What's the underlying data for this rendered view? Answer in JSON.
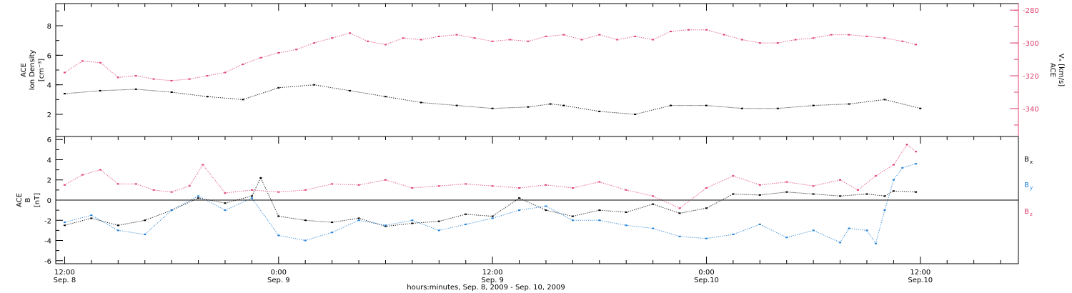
{
  "chart_data": [
    {
      "type": "scatter",
      "ylabel_lines": [
        "ACE",
        "Ion Density",
        "[cm⁻³]"
      ],
      "y_ticks": [
        2,
        4,
        6,
        8
      ],
      "ylim": [
        0.5,
        9.5
      ],
      "ylabel2_lines": [
        "ACE",
        "Vₓ [km/s]"
      ],
      "y2_ticks": [
        -280,
        -300,
        -320,
        -340
      ],
      "y2lim": [
        -357,
        -276
      ],
      "series": [
        {
          "role": "ion-density",
          "color": "#000000",
          "t": [
            0,
            4,
            8,
            12,
            16,
            20,
            24,
            28,
            32,
            36,
            40,
            44,
            48,
            52,
            54.5,
            56,
            60,
            64,
            68,
            72,
            76,
            80,
            84,
            88,
            92,
            96
          ],
          "v": [
            3.4,
            3.6,
            3.7,
            3.5,
            3.2,
            3.0,
            3.8,
            4.0,
            3.6,
            3.2,
            2.8,
            2.6,
            2.4,
            2.5,
            2.7,
            2.6,
            2.2,
            2.0,
            2.6,
            2.6,
            2.4,
            2.4,
            2.6,
            2.7,
            3.0,
            2.4
          ]
        },
        {
          "role": "vx",
          "color": "#e0406e",
          "t": [
            0,
            2,
            4,
            6,
            8,
            10,
            12,
            14,
            16,
            18,
            20,
            22,
            24,
            26,
            28,
            30,
            32,
            34,
            36,
            38,
            40,
            42,
            44,
            46,
            48,
            50,
            52,
            54,
            56,
            58,
            60,
            62,
            64,
            66,
            68,
            70,
            72,
            74,
            76,
            78,
            80,
            82,
            84,
            86,
            88,
            90,
            92,
            94,
            95.5
          ],
          "v": [
            -318,
            -311,
            -312,
            -321,
            -320,
            -322,
            -323,
            -322,
            -320,
            -318,
            -313,
            -309,
            -306,
            -304,
            -300,
            -297,
            -294,
            -299,
            -301,
            -297,
            -298,
            -296,
            -295,
            -297,
            -299,
            -298,
            -299,
            -296,
            -295,
            -298,
            -295,
            -298,
            -296,
            -298,
            -293,
            -292,
            -292,
            -295,
            -298,
            -300,
            -300,
            -298,
            -297,
            -295,
            -295,
            -296,
            -297,
            -299,
            -301
          ]
        }
      ]
    },
    {
      "type": "scatter",
      "ylabel_lines": [
        "ACE",
        "B",
        "[nT]"
      ],
      "y_ticks": [
        -6,
        -4,
        -2,
        0,
        2,
        4,
        6
      ],
      "ylim": [
        -6.3,
        6.3
      ],
      "zero_line": true,
      "series": [
        {
          "name": "B",
          "subscript": "x",
          "color": "#000000",
          "t": [
            0,
            3,
            6,
            9,
            12,
            15,
            18,
            21,
            22,
            24,
            27,
            30,
            33,
            36,
            39,
            42,
            45,
            48,
            51,
            54,
            57,
            60,
            63,
            66,
            69,
            72,
            75,
            78,
            81,
            84,
            87,
            90,
            92,
            93,
            95.5
          ],
          "v": [
            -2.5,
            -1.8,
            -2.5,
            -2.0,
            -1.0,
            0.2,
            -0.3,
            0.4,
            2.2,
            -1.6,
            -2.0,
            -2.2,
            -1.8,
            -2.6,
            -2.3,
            -2.1,
            -1.4,
            -1.6,
            0.2,
            -1.0,
            -1.6,
            -1.0,
            -1.2,
            -0.4,
            -1.3,
            -0.8,
            0.6,
            0.5,
            0.8,
            0.6,
            0.4,
            0.6,
            0.4,
            0.9,
            0.8
          ]
        },
        {
          "name": "B",
          "subscript": "y",
          "color": "#1f7fd6",
          "t": [
            0,
            3,
            6,
            9,
            12,
            15,
            18,
            21,
            24,
            27,
            30,
            33,
            36,
            39,
            42,
            45,
            48,
            51,
            54,
            57,
            60,
            63,
            66,
            69,
            72,
            75,
            78,
            81,
            84,
            87,
            88,
            90,
            91,
            92,
            93,
            94,
            95.5
          ],
          "v": [
            -2.2,
            -1.5,
            -3.0,
            -3.4,
            -1.0,
            0.4,
            -1.0,
            0.2,
            -3.5,
            -4.0,
            -3.2,
            -2.0,
            -2.5,
            -2.0,
            -3.0,
            -2.4,
            -1.8,
            -1.0,
            -0.6,
            -2.0,
            -2.0,
            -2.5,
            -2.8,
            -3.6,
            -3.8,
            -3.4,
            -2.4,
            -3.7,
            -3.0,
            -4.2,
            -2.8,
            -3.0,
            -4.3,
            -1.0,
            2.0,
            3.2,
            3.6
          ]
        },
        {
          "name": "B",
          "subscript": "z",
          "color": "#e0406e",
          "t": [
            0,
            2,
            4,
            6,
            8,
            10,
            12,
            14,
            15.5,
            18,
            21,
            24,
            27,
            30,
            33,
            36,
            39,
            42,
            45,
            48,
            51,
            54,
            57,
            60,
            63,
            66,
            69,
            72,
            75,
            78,
            81,
            84,
            87,
            89,
            91,
            93,
            94.5,
            95.5
          ],
          "v": [
            1.5,
            2.5,
            3.0,
            1.6,
            1.6,
            1.0,
            0.8,
            1.4,
            3.5,
            0.7,
            1.0,
            0.8,
            1.0,
            1.6,
            1.5,
            2.0,
            1.2,
            1.4,
            1.6,
            1.4,
            1.2,
            1.5,
            1.2,
            1.8,
            1.0,
            0.4,
            -0.8,
            1.2,
            2.4,
            1.5,
            1.8,
            1.4,
            2.0,
            1.0,
            2.4,
            3.5,
            5.5,
            4.8
          ]
        }
      ]
    }
  ],
  "x_axis": {
    "range_hours": [
      -1,
      107
    ],
    "ticks": [
      {
        "t": 0,
        "line1": "12:00",
        "line2": "Sep. 8"
      },
      {
        "t": 24,
        "line1": "0:00",
        "line2": "Sep. 9"
      },
      {
        "t": 48,
        "line1": "12:00",
        "line2": "Sep. 9"
      },
      {
        "t": 72,
        "line1": "0:00",
        "line2": "Sep.10"
      },
      {
        "t": 96,
        "line1": "12:00",
        "line2": "Sep.10"
      }
    ],
    "xlabel": "hours:minutes, Sep.  8, 2009 - Sep. 10, 2009"
  }
}
